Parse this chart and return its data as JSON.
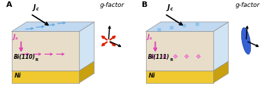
{
  "colors": {
    "sky_blue_top": "#c0d8f0",
    "sky_blue_top2": "#d0e4f4",
    "beige_mid": "#e8ddc8",
    "beige_right": "#d8cdb8",
    "yellow_front": "#f0c830",
    "yellow_top": "#e8c020",
    "yellow_right": "#c8a010",
    "arrow_blue": "#60a8e0",
    "arrow_pink": "#e040b8",
    "arrow_black": "#111111",
    "red_star": "#e02000",
    "blue_disk": "#2050d0",
    "text_dark": "#111111",
    "text_yellow_ni": "#f0c830",
    "background": "#ffffff",
    "edge": "#909090"
  },
  "panel_A": {
    "label": "A",
    "bi_text": "Bi(110)",
    "bi_sub": "R",
    "ni_text": "Ni",
    "jc_text": "J_c",
    "js_text": "J_s",
    "gfactor_text": "g-factor",
    "gfactor_type": "red_x"
  },
  "panel_B": {
    "label": "B",
    "bi_text": "Bi(111)",
    "bi_sub": "R",
    "ni_text": "Ni",
    "jc_text": "J_c",
    "js_text": "J_s",
    "gfactor_text": "g-factor",
    "gfactor_type": "blue_disk"
  }
}
